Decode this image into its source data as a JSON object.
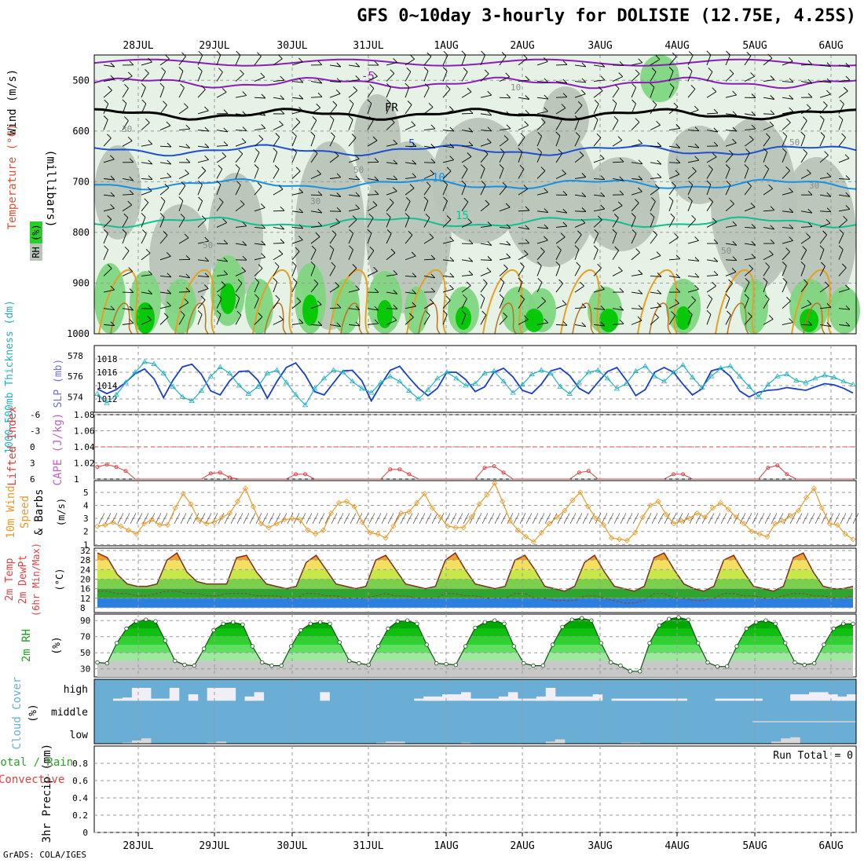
{
  "title": "GFS 0~10day 3-hourly for DOLISIE (12.75E, 4.25S)",
  "credit": "GrADS: COLA/IGES",
  "run_total": "Run Total = 0",
  "colors": {
    "rh_green_dark": "#00c800",
    "rh_green_mid": "#7fd67f",
    "rh_gray": "#b8c4b8",
    "rh_pale": "#e6f2e6",
    "temp_orange": "#e6a020",
    "cape_red": "#e04040",
    "wind_orange": "#e89a2a",
    "slp_blue": "#1a3fc8",
    "thickness_cyan": "#20b0c0",
    "cloud_blue": "#6aaed6",
    "precip_green": "#2aa02a"
  },
  "chart_data": [
    {
      "panel": "upper_air",
      "type": "heatmap",
      "ylabel": "Wind (m/s)",
      "ylabel_parts": [
        "Temperature (°C)",
        "Wind (m/s)",
        "RH (%)",
        "(millibars)"
      ],
      "y_ticks": [
        500,
        600,
        700,
        800,
        900,
        1000
      ],
      "ylim": [
        450,
        1000
      ],
      "x_ticks": [
        "28JUL",
        "29JUL",
        "30JUL",
        "31JUL",
        "1AUG",
        "2AUG",
        "3AUG",
        "4AUG",
        "5AUG",
        "6AUG"
      ],
      "isotherm_labels": [
        {
          "value": "-5",
          "level": 505
        },
        {
          "value": "FR",
          "level": 567
        },
        {
          "value": "5",
          "level": 638
        },
        {
          "value": "10",
          "level": 705
        },
        {
          "value": "15",
          "level": 780
        }
      ],
      "rh_labels": [
        "10",
        "30",
        "50",
        "30",
        "50",
        "50",
        "50",
        "30"
      ]
    },
    {
      "panel": "thickness_slp",
      "type": "line",
      "ylabel": "1000-500mb Thickness (dm)",
      "ylabel2": "SLP (mb)",
      "left_ticks": [
        574,
        576,
        578
      ],
      "right_ticks": [
        1012,
        1014,
        1016,
        1018
      ],
      "series": [
        {
          "name": "SLP (mb)",
          "values": [
            1013.5,
            1012.8,
            1013.4,
            1014.5,
            1015.8,
            1016.5,
            1015.0,
            1012.2,
            1014.8,
            1016.8,
            1017.2,
            1015.7,
            1013.2,
            1012.6,
            1014.7,
            1016.1,
            1016.2,
            1014.8,
            1012.1,
            1014.6,
            1016.7,
            1017.4,
            1015.6,
            1013.1,
            1012.6,
            1014.4,
            1016.2,
            1016.3,
            1014.7,
            1011.7,
            1014.1,
            1016.3,
            1016.9,
            1015.2,
            1013.6,
            1012.5,
            1013.6,
            1016.0,
            1016.0,
            1014.9,
            1013.1,
            1013.8,
            1016.0,
            1016.6,
            1015.3,
            1013.3,
            1012.8,
            1014.2,
            1016.2,
            1016.6,
            1015.5,
            1013.6,
            1012.8,
            1014.5,
            1016.1,
            1016.7,
            1014.8,
            1012.5,
            1013.4,
            1016.0,
            1016.7,
            1016.0,
            1014.2,
            1012.6,
            1013.5,
            1016.2,
            1016.6,
            1015.4,
            1013.2,
            1012.3,
            1013.0,
            1013.3,
            1013.4,
            1013.7,
            1013.5,
            1013.3,
            1013.8,
            1014.3,
            1014.1,
            1013.6,
            1012.9
          ]
        },
        {
          "name": "1000-500mb Thickness (dm)",
          "values": [
            574.3,
            573.4,
            574.2,
            575.4,
            576.4,
            577.4,
            577.2,
            576.3,
            575.0,
            574.0,
            573.6,
            574.6,
            576.0,
            576.9,
            576.3,
            575.1,
            574.3,
            575.0,
            576.3,
            576.6,
            575.4,
            574.2,
            573.2,
            574.8,
            575.8,
            576.6,
            576.4,
            575.5,
            574.8,
            574.4,
            575.4,
            576.0,
            575.5,
            574.6,
            573.8,
            574.7,
            575.8,
            576.4,
            575.8,
            575.1,
            575.3,
            576.3,
            576.5,
            575.5,
            574.4,
            575.2,
            576.2,
            576.6,
            576.3,
            575.0,
            574.3,
            575.4,
            576.4,
            576.6,
            575.8,
            574.8,
            575.3,
            576.5,
            577.0,
            576.0,
            575.5,
            576.4,
            577.1,
            575.9,
            574.9,
            576.0,
            576.8,
            577.0,
            576.0,
            575.0,
            574.0,
            575.2,
            576.0,
            576.2,
            575.6,
            575.4,
            575.8,
            576.1,
            575.9,
            575.5,
            575.2
          ]
        }
      ]
    },
    {
      "panel": "lifted_cape",
      "type": "line",
      "ylabel": "Lifted Index",
      "ylabel2": "CAPE (J/kg)",
      "left_ticks": [
        -6,
        -3,
        0,
        3,
        6
      ],
      "right_ticks": [
        1,
        1.02,
        1.04,
        1.06,
        1.08
      ],
      "series": [
        {
          "name": "CAPE (J/kg)",
          "values": [
            1.015,
            1.018,
            1.015,
            1.01,
            1.0,
            1.0,
            1.0,
            1.0,
            1.0,
            1.0,
            1.0,
            1.0,
            1.007,
            1.008,
            1.002,
            1.0,
            1.0,
            1.0,
            1.0,
            1.0,
            1.0,
            1.006,
            1.006,
            1.0,
            1.0,
            1.0,
            1.0,
            1.0,
            1.0,
            1.0,
            1.0,
            1.012,
            1.012,
            1.006,
            1.0,
            1.0,
            1.0,
            1.0,
            1.0,
            1.0,
            1.0,
            1.014,
            1.016,
            1.008,
            1.0,
            1.0,
            1.0,
            1.0,
            1.0,
            1.0,
            1.0,
            1.008,
            1.01,
            1.0,
            1.0,
            1.0,
            1.0,
            1.0,
            1.0,
            1.0,
            1.0,
            1.006,
            1.006,
            1.0,
            1.0,
            1.0,
            1.0,
            1.0,
            1.0,
            1.0,
            1.0,
            1.014,
            1.017,
            1.006,
            1.0,
            1.0,
            1.0,
            1.0,
            1.0,
            1.0,
            1.0
          ]
        }
      ]
    },
    {
      "panel": "wind10m",
      "type": "line",
      "ylabel": "10m Wind Speed (m/s) & Barbs",
      "left_ticks": [
        1,
        2,
        3,
        4,
        5
      ],
      "series": [
        {
          "name": "10m Wind Speed (m/s)",
          "values": [
            2.4,
            2.5,
            2.7,
            2.4,
            2.1,
            1.8,
            2.6,
            2.9,
            2.5,
            2.5,
            3.8,
            4.9,
            4.1,
            2.9,
            2.6,
            2.7,
            3.1,
            3.4,
            4.3,
            5.3,
            3.9,
            2.6,
            2.3,
            2.6,
            2.9,
            3.0,
            2.9,
            2.1,
            1.8,
            2.1,
            3.4,
            4.2,
            4.3,
            3.9,
            2.7,
            1.9,
            1.8,
            1.5,
            2.4,
            3.4,
            3.5,
            4.2,
            4.9,
            3.8,
            3.1,
            2.4,
            2.3,
            2.3,
            3.1,
            4.1,
            4.8,
            5.7,
            4.3,
            2.8,
            2.1,
            1.6,
            1.2,
            1.9,
            2.6,
            3.1,
            3.6,
            4.4,
            5.0,
            3.9,
            3.0,
            2.5,
            1.5,
            1.4,
            1.3,
            1.9,
            3.1,
            4.0,
            4.3,
            3.3,
            2.6,
            2.8,
            3.0,
            3.4,
            3.1,
            3.8,
            4.2,
            3.7,
            3.1,
            2.6,
            2.0,
            1.8,
            1.6,
            2.6,
            2.8,
            3.2,
            3.6,
            4.6,
            5.3,
            3.8,
            2.6,
            2.5,
            1.8,
            1.4
          ]
        }
      ]
    },
    {
      "panel": "temp2m",
      "type": "area",
      "ylabel": "2m Temp 2m DewPt (6hr Min/Max) (°C)",
      "left_ticks": [
        8,
        12,
        16,
        20,
        24,
        28,
        32
      ],
      "series": [
        {
          "name": "2m Temp",
          "values": [
            31,
            29,
            22,
            18,
            17,
            17,
            18,
            28,
            31,
            23,
            19,
            18,
            18,
            18,
            29,
            30,
            23,
            18,
            17,
            16,
            17,
            27,
            30,
            24,
            18,
            17,
            16,
            17,
            28,
            30,
            24,
            18,
            17,
            16,
            17,
            28,
            31,
            24,
            18,
            17,
            16,
            17,
            28,
            30,
            24,
            17,
            16,
            15,
            17,
            27,
            30,
            23,
            17,
            16,
            15,
            17,
            29,
            31,
            24,
            18,
            16,
            15,
            17,
            28,
            30,
            23,
            17,
            16,
            15,
            17,
            29,
            31,
            23,
            17,
            16,
            16,
            17
          ]
        },
        {
          "name": "2m DewPt",
          "values": [
            15,
            15,
            14,
            14,
            13,
            13,
            14,
            15,
            15,
            14,
            14,
            13,
            13,
            14,
            14,
            14,
            13,
            13,
            13,
            12,
            12,
            14,
            14,
            13,
            13,
            12,
            12,
            12,
            13,
            14,
            13,
            13,
            12,
            12,
            12,
            14,
            14,
            13,
            13,
            12,
            12,
            12,
            14,
            14,
            12,
            12,
            11,
            11,
            11,
            13,
            13,
            12,
            11,
            10,
            10,
            11,
            14,
            14,
            12,
            12,
            11,
            11,
            12,
            14,
            14,
            13,
            13,
            12,
            12,
            13,
            14,
            14,
            13,
            13,
            12,
            12,
            13
          ]
        }
      ]
    },
    {
      "panel": "rh2m",
      "type": "area",
      "ylabel": "2m RH (%)",
      "left_ticks": [
        30,
        50,
        70,
        90
      ],
      "series": [
        {
          "name": "2m RH",
          "values": [
            38,
            37,
            62,
            80,
            89,
            91,
            89,
            65,
            40,
            35,
            34,
            55,
            78,
            86,
            88,
            85,
            58,
            38,
            34,
            34,
            58,
            78,
            86,
            88,
            86,
            63,
            40,
            37,
            35,
            58,
            80,
            89,
            90,
            86,
            60,
            37,
            36,
            35,
            58,
            81,
            88,
            90,
            86,
            58,
            37,
            34,
            34,
            60,
            82,
            91,
            93,
            90,
            62,
            38,
            34,
            27,
            27,
            62,
            84,
            92,
            94,
            91,
            62,
            38,
            33,
            33,
            58,
            80,
            88,
            90,
            86,
            62,
            38,
            35,
            37,
            60,
            80,
            86,
            86
          ]
        }
      ]
    },
    {
      "panel": "cloud",
      "type": "bar",
      "ylabel": "Cloud Cover (%)",
      "levels": [
        "high",
        "middle",
        "low"
      ],
      "series": [
        {
          "name": "high",
          "values": [
            0,
            0,
            10,
            15,
            60,
            60,
            10,
            10,
            60,
            0,
            30,
            0,
            60,
            60,
            60,
            0,
            20,
            40,
            0,
            0,
            0,
            0,
            0,
            0,
            40,
            0,
            0,
            0,
            0,
            0,
            0,
            0,
            0,
            0,
            10,
            20,
            20,
            30,
            30,
            40,
            10,
            10,
            10,
            20,
            40,
            10,
            10,
            20,
            60,
            20,
            20,
            20,
            20,
            30,
            0,
            10,
            10,
            10,
            10,
            10,
            10,
            10,
            10,
            0,
            0,
            0,
            10,
            10,
            10,
            10,
            10,
            0,
            0,
            0,
            30,
            30,
            40,
            40,
            30,
            20,
            30
          ]
        },
        {
          "name": "middle",
          "values": [
            0,
            0,
            0,
            0,
            0,
            0,
            0,
            0,
            0,
            0,
            0,
            0,
            0,
            0,
            0,
            0,
            0,
            0,
            0,
            0,
            0,
            0,
            0,
            0,
            0,
            0,
            0,
            0,
            0,
            0,
            0,
            0,
            0,
            0,
            0,
            0,
            0,
            0,
            0,
            0,
            0,
            0,
            0,
            0,
            0,
            0,
            0,
            0,
            0,
            0,
            0,
            0,
            0,
            0,
            0,
            0,
            0,
            0,
            0,
            0,
            0,
            0,
            0,
            0,
            0,
            0,
            0,
            0,
            0,
            0,
            5,
            5,
            5,
            5,
            5,
            5,
            5,
            5,
            5,
            5,
            5
          ]
        },
        {
          "name": "low",
          "values": [
            0,
            0,
            0,
            5,
            15,
            25,
            0,
            0,
            0,
            0,
            0,
            0,
            5,
            10,
            0,
            0,
            0,
            0,
            0,
            0,
            0,
            0,
            0,
            0,
            0,
            0,
            0,
            0,
            0,
            0,
            5,
            10,
            10,
            0,
            0,
            0,
            0,
            0,
            0,
            5,
            0,
            0,
            0,
            0,
            0,
            0,
            0,
            0,
            10,
            20,
            0,
            0,
            0,
            0,
            0,
            0,
            5,
            5,
            0,
            0,
            0,
            0,
            0,
            0,
            0,
            0,
            0,
            0,
            0,
            0,
            0,
            0,
            10,
            25,
            30,
            0,
            0,
            0,
            0,
            0,
            0
          ]
        }
      ]
    },
    {
      "panel": "precip",
      "type": "bar",
      "ylabel": "3hr Precip (mm)",
      "legend": [
        "Total / Rain",
        "Convective"
      ],
      "left_ticks": [
        0,
        0.2,
        0.4,
        0.6,
        0.8
      ],
      "ylim": [
        0,
        1
      ],
      "values": []
    }
  ]
}
